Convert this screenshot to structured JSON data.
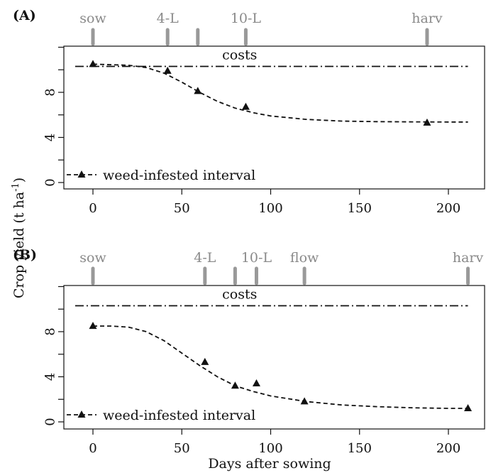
{
  "chart_data": [
    {
      "type": "line",
      "panel_label": "(A)",
      "xlim": [
        -12,
        220
      ],
      "ylim": [
        -1,
        13
      ],
      "x_ticks": [
        0,
        50,
        100,
        150,
        200
      ],
      "x_tick_labels": [
        "0",
        "50",
        "100",
        "150",
        "200"
      ],
      "y_ticks": [
        0,
        4,
        8
      ],
      "y_tick_labels": [
        "0",
        "4",
        "8"
      ],
      "y_minor_ticks": [
        2,
        6,
        10,
        12
      ],
      "stages": [
        {
          "x": 0,
          "label": "sow"
        },
        {
          "x": 42,
          "label": "4-L"
        },
        {
          "x": 59,
          "label": ""
        },
        {
          "x": 86,
          "label": "10-L"
        },
        {
          "x": 188,
          "label": "harv"
        }
      ],
      "costs_line": {
        "x": [
          -10,
          211
        ],
        "y": 10.3,
        "label": "costs"
      },
      "series": [
        {
          "points": {
            "x": [
              0,
              42,
              59,
              86,
              188
            ],
            "y": [
              10.5,
              9.9,
              8.1,
              6.7,
              5.3
            ]
          },
          "curve": {
            "x": [
              0,
              20,
              30,
              40,
              50,
              60,
              70,
              80,
              90,
              100,
              120,
              140,
              160,
              180,
              200,
              211
            ],
            "y": [
              10.5,
              10.4,
              10.2,
              9.7,
              8.9,
              8.0,
              7.2,
              6.6,
              6.2,
              5.9,
              5.6,
              5.45,
              5.4,
              5.38,
              5.37,
              5.37
            ]
          }
        }
      ],
      "legend": {
        "label": "weed-infested interval",
        "placement": "bottom-left"
      }
    },
    {
      "type": "line",
      "panel_label": "(B)",
      "xlim": [
        -12,
        220
      ],
      "ylim": [
        -1,
        13
      ],
      "x_ticks": [
        0,
        50,
        100,
        150,
        200
      ],
      "x_tick_labels": [
        "0",
        "50",
        "100",
        "150",
        "200"
      ],
      "y_ticks": [
        0,
        4,
        8
      ],
      "y_tick_labels": [
        "0",
        "4",
        "8"
      ],
      "y_minor_ticks": [
        2,
        6,
        10,
        12
      ],
      "stages": [
        {
          "x": 0,
          "label": "sow"
        },
        {
          "x": 63,
          "label": "4-L"
        },
        {
          "x": 80,
          "label": ""
        },
        {
          "x": 92,
          "label": "10-L"
        },
        {
          "x": 119,
          "label": "flow"
        },
        {
          "x": 211,
          "label": "harv"
        }
      ],
      "costs_line": {
        "x": [
          -10,
          211
        ],
        "y": 10.3,
        "label": "costs"
      },
      "series": [
        {
          "points": {
            "x": [
              0,
              63,
              80,
              92,
              119,
              211
            ],
            "y": [
              8.5,
              5.3,
              3.2,
              3.4,
              1.8,
              1.2
            ]
          },
          "curve": {
            "x": [
              0,
              10,
              20,
              30,
              40,
              50,
              60,
              70,
              80,
              90,
              100,
              120,
              140,
              160,
              180,
              200,
              211
            ],
            "y": [
              8.5,
              8.5,
              8.4,
              8.0,
              7.2,
              6.1,
              5.0,
              4.0,
              3.2,
              2.7,
              2.3,
              1.8,
              1.5,
              1.35,
              1.25,
              1.2,
              1.2
            ]
          }
        }
      ],
      "legend": {
        "label": "weed-infested interval",
        "placement": "bottom-left"
      }
    }
  ],
  "shared": {
    "ylabel": "Crop yield (t ha",
    "ylabel_superscript": "-1",
    "ylabel_close": ")",
    "xlabel": "Days after sowing"
  },
  "colors": {
    "stage_markers": "#999999",
    "stage_text": "#8a8a8a",
    "axis": "#111111"
  }
}
